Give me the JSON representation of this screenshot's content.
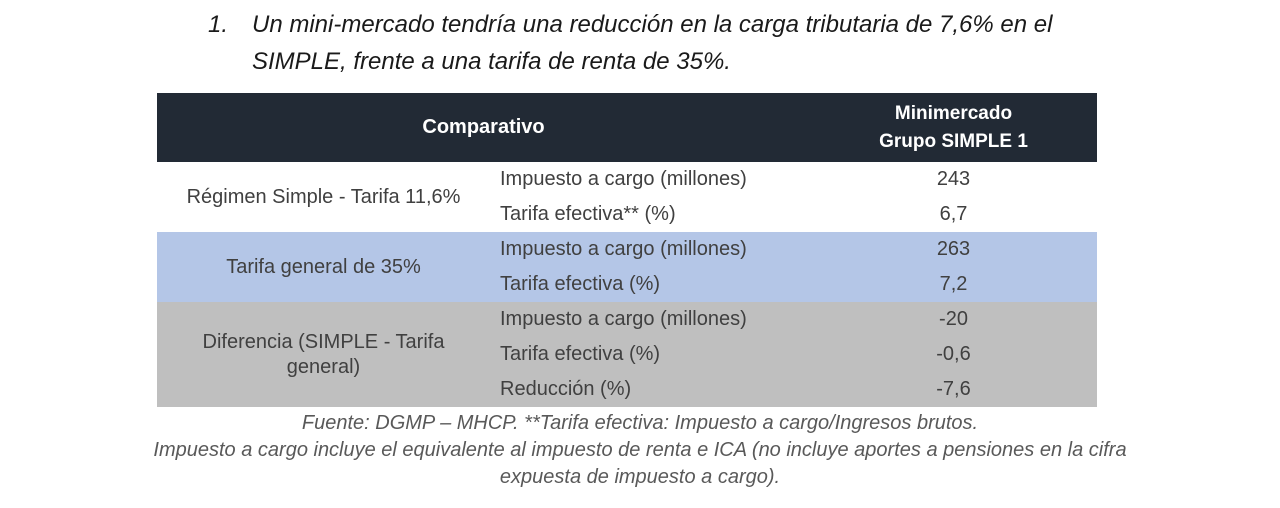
{
  "intro": {
    "number": "1.",
    "lines": [
      "Un mini-mercado tendría una reducción en la carga tributaria de 7,6% en el",
      "SIMPLE, frente a una tarifa de renta de 35%."
    ]
  },
  "table": {
    "header": {
      "comparativo_label": "Comparativo",
      "column_label_line1": "Minimercado",
      "column_label_line2": "Grupo SIMPLE 1"
    },
    "sections": [
      {
        "label": "Régimen Simple - Tarifa 11,6%",
        "background": "#FFFFFF",
        "rows": [
          {
            "metric": "Impuesto a cargo (millones)",
            "value": "243"
          },
          {
            "metric": "Tarifa efectiva** (%)",
            "value": "6,7"
          }
        ]
      },
      {
        "label": "Tarifa general de 35%",
        "background": "#B4C6E7",
        "rows": [
          {
            "metric": "Impuesto a cargo (millones)",
            "value": "263"
          },
          {
            "metric": "Tarifa efectiva (%)",
            "value": "7,2"
          }
        ]
      },
      {
        "label": "Diferencia (SIMPLE - Tarifa general)",
        "background": "#BFBFBF",
        "rows": [
          {
            "metric": "Impuesto a cargo (millones)",
            "value": "-20"
          },
          {
            "metric": "Tarifa efectiva (%)",
            "value": "-0,6"
          },
          {
            "metric": "Reducción (%)",
            "value": "-7,6"
          }
        ]
      }
    ],
    "colors": {
      "header_bg": "#222A35",
      "header_text": "#FFFFFF",
      "body_text": "#404040",
      "blue_row_bg": "#B4C6E7",
      "gray_row_bg": "#BFBFBF"
    }
  },
  "footnotes": {
    "lines": [
      "Fuente: DGMP – MHCP. **Tarifa efectiva: Impuesto a cargo/Ingresos brutos.",
      "Impuesto a cargo incluye el equivalente al impuesto de renta e ICA (no incluye aportes a pensiones en la cifra",
      "expuesta de impuesto a cargo)."
    ]
  }
}
